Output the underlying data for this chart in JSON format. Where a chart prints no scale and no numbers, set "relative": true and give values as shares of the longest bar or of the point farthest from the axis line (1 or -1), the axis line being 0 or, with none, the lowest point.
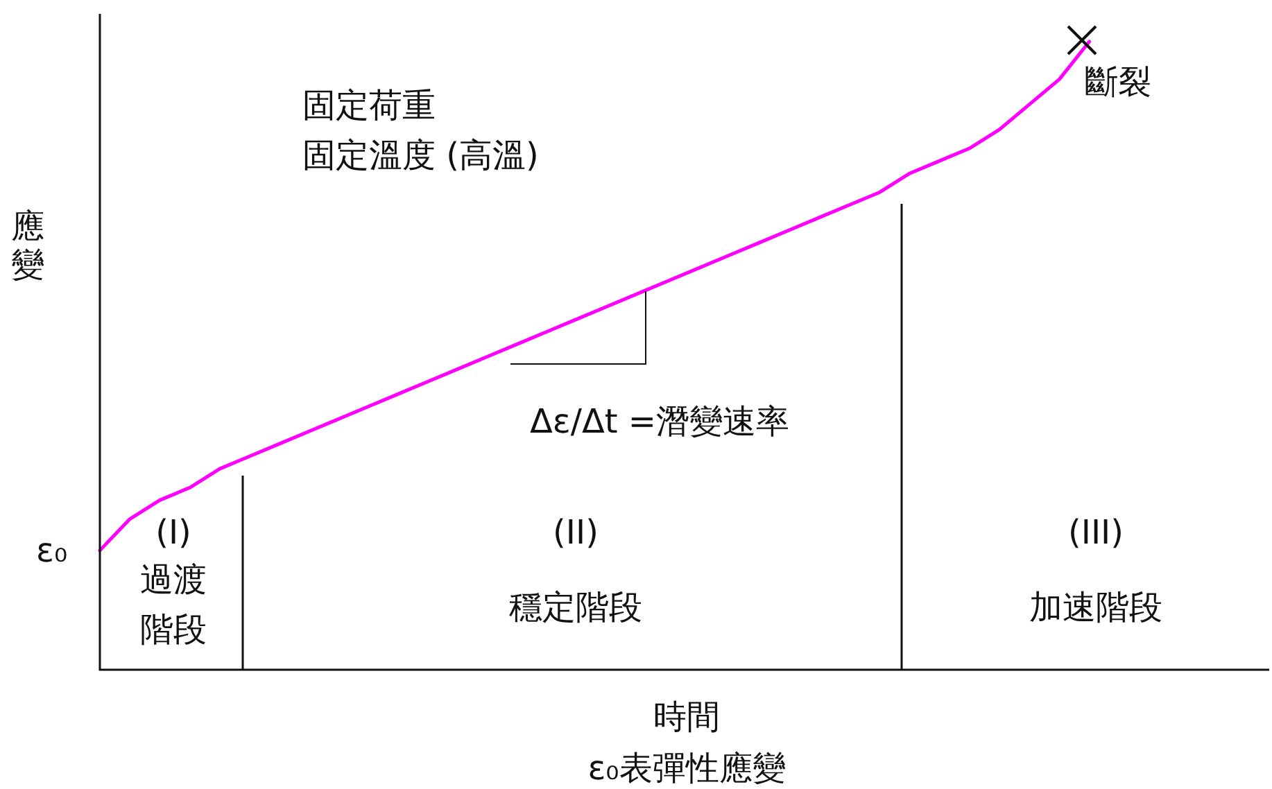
{
  "chart_data": {
    "type": "line",
    "relative": true,
    "xlabel": "時間",
    "ylabel": "應變",
    "grid": false,
    "legend": false,
    "tick_labels": false,
    "categories": [
      null,
      null,
      null,
      null,
      null,
      null,
      null,
      null,
      null,
      null,
      null,
      null,
      null,
      null,
      null,
      null,
      null,
      null,
      null,
      null,
      null,
      null,
      null,
      null,
      null,
      null,
      null,
      null,
      null,
      null,
      null,
      null,
      null,
      null,
      null,
      null,
      null,
      null,
      null,
      null
    ],
    "series": [
      {
        "color": "#ff00ff",
        "marker": "none",
        "line_style": "solid",
        "values": [
          0.19,
          0.24,
          0.27,
          0.29,
          0.32,
          0.34,
          0.36,
          0.38,
          0.4,
          0.42,
          0.44,
          0.46,
          0.48,
          0.5,
          0.52,
          0.54,
          0.56,
          0.58,
          0.6,
          0.62,
          0.64,
          0.66,
          0.68,
          0.7,
          0.72,
          0.74,
          0.76,
          0.79,
          0.81,
          0.83,
          0.86,
          0.9,
          0.94,
          1,
          null,
          null,
          null,
          null,
          null,
          null
        ]
      }
    ],
    "annotations": [
      "固定荷重",
      "固定溫度 (高溫)",
      "ε₀",
      "(I)",
      "過渡階段",
      "(II)",
      "穩定階段",
      "(III)",
      "加速階段",
      "斷裂",
      "Δε/Δt =潛變速率",
      "ε₀表彈性應變"
    ]
  }
}
